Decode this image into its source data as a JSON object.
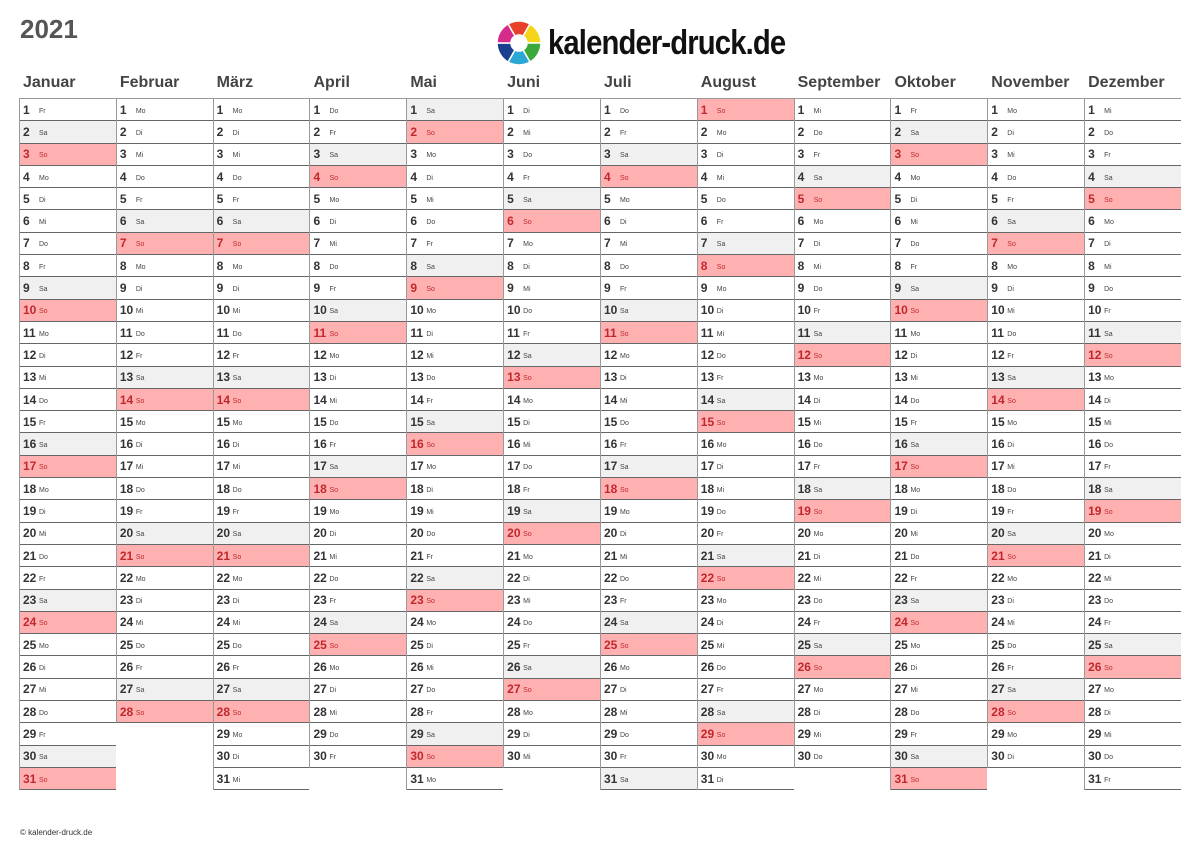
{
  "year": "2021",
  "logo": {
    "text": "kalender-druck.de",
    "colors": [
      "#e8412b",
      "#f6d418",
      "#3aa83a",
      "#2aa7d5",
      "#1a3f8f",
      "#d62b8a"
    ]
  },
  "copyright": "© kalender-druck.de",
  "weekdays": [
    "Mo",
    "Di",
    "Mi",
    "Do",
    "Fr",
    "Sa",
    "So"
  ],
  "colors": {
    "saturday": "#f0f0f0",
    "sunday": "#ffb1b1",
    "sunday_text": "#c0282d"
  },
  "months": [
    {
      "name": "Januar",
      "days": 31,
      "start": 4
    },
    {
      "name": "Februar",
      "days": 28,
      "start": 0
    },
    {
      "name": "März",
      "days": 31,
      "start": 0
    },
    {
      "name": "April",
      "days": 30,
      "start": 3
    },
    {
      "name": "Mai",
      "days": 31,
      "start": 5
    },
    {
      "name": "Juni",
      "days": 30,
      "start": 1
    },
    {
      "name": "Juli",
      "days": 31,
      "start": 3
    },
    {
      "name": "August",
      "days": 31,
      "start": 6
    },
    {
      "name": "September",
      "days": 30,
      "start": 2
    },
    {
      "name": "Oktober",
      "days": 31,
      "start": 4
    },
    {
      "name": "November",
      "days": 30,
      "start": 0
    },
    {
      "name": "Dezember",
      "days": 31,
      "start": 2
    }
  ]
}
